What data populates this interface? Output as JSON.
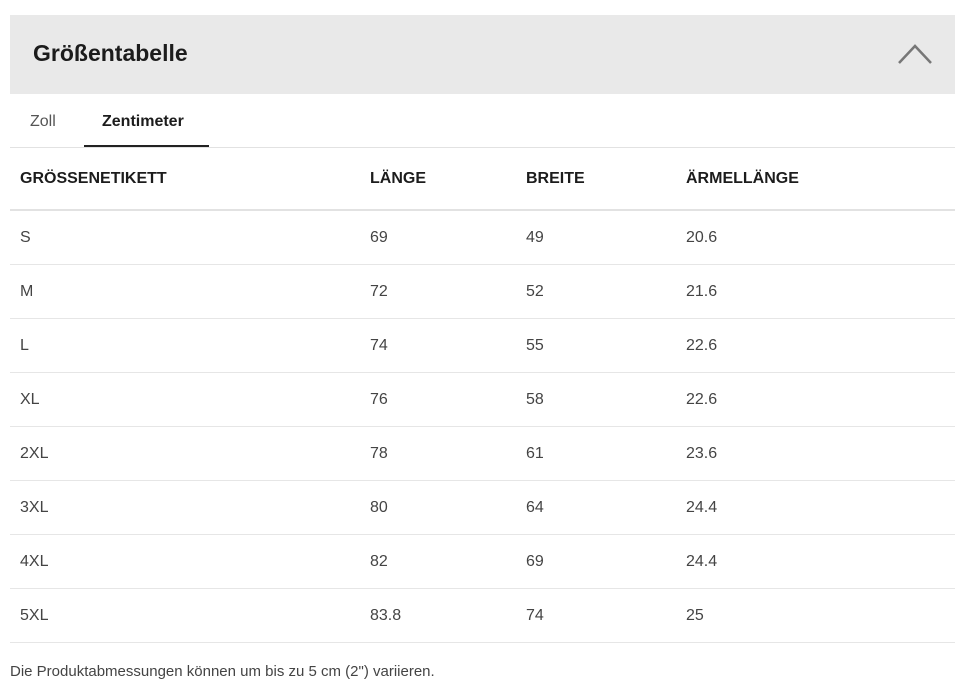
{
  "header": {
    "title": "Größentabelle",
    "collapse_icon": "chevron-up-icon"
  },
  "tabs": [
    {
      "label": "Zoll",
      "active": false
    },
    {
      "label": "Zentimeter",
      "active": true
    }
  ],
  "table": {
    "columns": [
      "GRÖSSENETIKETT",
      "LÄNGE",
      "BREITE",
      "ÄRMELLÄNGE"
    ],
    "rows": [
      [
        "S",
        "69",
        "49",
        "20.6"
      ],
      [
        "M",
        "72",
        "52",
        "21.6"
      ],
      [
        "L",
        "74",
        "55",
        "22.6"
      ],
      [
        "XL",
        "76",
        "58",
        "22.6"
      ],
      [
        "2XL",
        "78",
        "61",
        "23.6"
      ],
      [
        "3XL",
        "80",
        "64",
        "24.4"
      ],
      [
        "4XL",
        "82",
        "69",
        "24.4"
      ],
      [
        "5XL",
        "83.8",
        "74",
        "25"
      ]
    ]
  },
  "footer": {
    "note": "Die Produktabmessungen können um bis zu 5 cm (2\") variieren."
  }
}
